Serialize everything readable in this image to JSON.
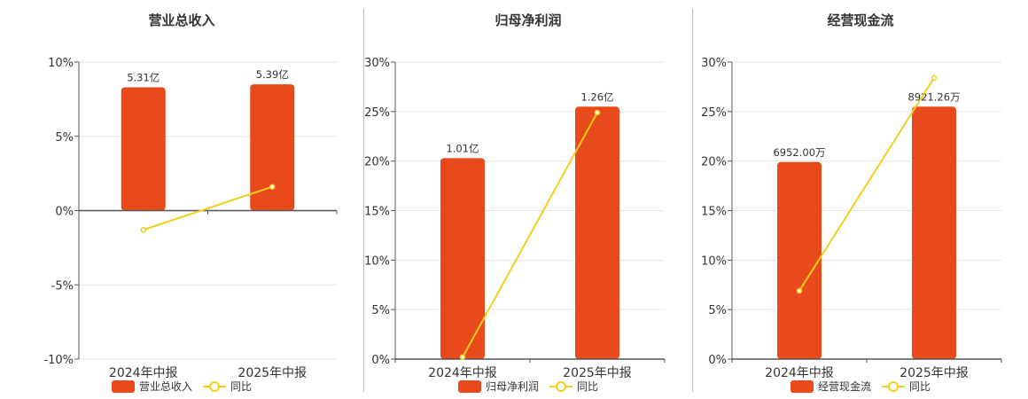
{
  "colors": {
    "bar": "#e84a1b",
    "line": "#f2cf1b",
    "grid": "#e6e6e6",
    "axis": "#555555",
    "text": "#333333"
  },
  "chart_data": [
    {
      "type": "bar",
      "title": "营业总收入",
      "categories": [
        "2024年中报",
        "2025年中报"
      ],
      "series": [
        {
          "name": "营业总收入",
          "type": "bar",
          "values": [
            8.3,
            8.5
          ],
          "labels": [
            "5.31亿",
            "5.39亿"
          ]
        },
        {
          "name": "同比",
          "type": "line",
          "values": [
            -1.3,
            1.6
          ]
        }
      ],
      "ylim": [
        -10,
        10
      ],
      "yticks": [
        "10%",
        "5%",
        "0%",
        "-5%",
        "-10%"
      ],
      "ytick_values": [
        10,
        5,
        0,
        -5,
        -10
      ],
      "grid": true,
      "legend": "bottom"
    },
    {
      "type": "bar",
      "title": "归母净利润",
      "categories": [
        "2024年中报",
        "2025年中报"
      ],
      "series": [
        {
          "name": "归母净利润",
          "type": "bar",
          "values": [
            20.3,
            25.5
          ],
          "labels": [
            "1.01亿",
            "1.26亿"
          ]
        },
        {
          "name": "同比",
          "type": "line",
          "values": [
            0.2,
            24.9
          ]
        }
      ],
      "ylim": [
        0,
        30
      ],
      "yticks": [
        "30%",
        "25%",
        "20%",
        "15%",
        "10%",
        "5%",
        "0%"
      ],
      "ytick_values": [
        30,
        25,
        20,
        15,
        10,
        5,
        0
      ],
      "grid": true,
      "legend": "bottom"
    },
    {
      "type": "bar",
      "title": "经营现金流",
      "categories": [
        "2024年中报",
        "2025年中报"
      ],
      "series": [
        {
          "name": "经营现金流",
          "type": "bar",
          "values": [
            19.9,
            25.5
          ],
          "labels": [
            "6952.00万",
            "8921.26万"
          ]
        },
        {
          "name": "同比",
          "type": "line",
          "values": [
            6.9,
            28.4
          ]
        }
      ],
      "ylim": [
        0,
        30
      ],
      "yticks": [
        "30%",
        "25%",
        "20%",
        "15%",
        "10%",
        "5%",
        "0%"
      ],
      "ytick_values": [
        30,
        25,
        20,
        15,
        10,
        5,
        0
      ],
      "grid": true,
      "legend": "bottom"
    }
  ]
}
